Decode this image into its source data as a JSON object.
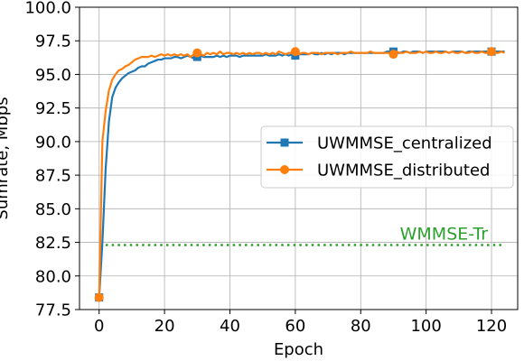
{
  "chart_data": {
    "type": "line",
    "xlabel": "Epoch",
    "ylabel": "Sumrate, Mbps",
    "xlim": [
      -6,
      128
    ],
    "ylim": [
      77.5,
      100.0
    ],
    "xticks": [
      0,
      20,
      40,
      60,
      80,
      100,
      120
    ],
    "yticks": [
      77.5,
      80.0,
      82.5,
      85.0,
      87.5,
      90.0,
      92.5,
      95.0,
      97.5,
      100.0
    ],
    "ytick_labels": [
      "77.5",
      "80.0",
      "82.5",
      "85.0",
      "87.5",
      "90.0",
      "92.5",
      "95.0",
      "97.5",
      "100.0"
    ],
    "xtick_labels": [
      "0",
      "20",
      "40",
      "60",
      "80",
      "100",
      "120"
    ],
    "grid": true,
    "legend_position": "center-right",
    "series": [
      {
        "name": "UWMMSE_centralized",
        "color": "#1f77b4",
        "marker": "square",
        "marker_every": 30,
        "x": [
          0,
          1,
          2,
          3,
          4,
          5,
          6,
          7,
          8,
          9,
          10,
          11,
          12,
          13,
          14,
          15,
          16,
          17,
          18,
          19,
          20,
          21,
          22,
          23,
          24,
          25,
          26,
          27,
          28,
          29,
          30,
          31,
          32,
          33,
          34,
          35,
          36,
          37,
          38,
          39,
          40,
          41,
          42,
          43,
          44,
          45,
          46,
          47,
          48,
          49,
          50,
          51,
          52,
          53,
          54,
          55,
          56,
          57,
          58,
          59,
          60,
          61,
          62,
          63,
          64,
          65,
          66,
          67,
          68,
          69,
          70,
          71,
          72,
          73,
          74,
          75,
          76,
          77,
          78,
          79,
          80,
          81,
          82,
          83,
          84,
          85,
          86,
          87,
          88,
          89,
          90,
          91,
          92,
          93,
          94,
          95,
          96,
          97,
          98,
          99,
          100,
          101,
          102,
          103,
          104,
          105,
          106,
          107,
          108,
          109,
          110,
          111,
          112,
          113,
          114,
          115,
          116,
          117,
          118,
          119,
          120,
          121,
          122,
          123,
          124
        ],
        "values": [
          78.4,
          82.5,
          88.0,
          91.5,
          93.3,
          94.0,
          94.4,
          94.7,
          94.9,
          95.1,
          95.2,
          95.3,
          95.5,
          95.6,
          95.6,
          95.8,
          95.9,
          96.0,
          96.1,
          96.1,
          96.2,
          96.2,
          96.2,
          96.3,
          96.3,
          96.2,
          96.3,
          96.4,
          96.3,
          96.2,
          96.3,
          96.4,
          96.3,
          96.3,
          96.3,
          96.3,
          96.4,
          96.3,
          96.4,
          96.3,
          96.4,
          96.4,
          96.4,
          96.3,
          96.4,
          96.4,
          96.4,
          96.4,
          96.4,
          96.4,
          96.4,
          96.5,
          96.4,
          96.4,
          96.4,
          96.5,
          96.4,
          96.5,
          96.4,
          96.5,
          96.4,
          96.5,
          96.5,
          96.5,
          96.5,
          96.6,
          96.5,
          96.5,
          96.6,
          96.5,
          96.6,
          96.5,
          96.6,
          96.6,
          96.6,
          96.5,
          96.6,
          96.6,
          96.6,
          96.6,
          96.6,
          96.6,
          96.6,
          96.6,
          96.6,
          96.6,
          96.6,
          96.6,
          96.7,
          96.7,
          96.7,
          96.6,
          96.6,
          96.7,
          96.7,
          96.6,
          96.7,
          96.7,
          96.7,
          96.6,
          96.7,
          96.7,
          96.7,
          96.7,
          96.7,
          96.7,
          96.7,
          96.6,
          96.7,
          96.7,
          96.7,
          96.7,
          96.6,
          96.7,
          96.7,
          96.7,
          96.7,
          96.7,
          96.7,
          96.7,
          96.7,
          96.7,
          96.7,
          96.7,
          96.7
        ]
      },
      {
        "name": "UWMMSE_distributed",
        "color": "#ff7f0e",
        "marker": "circle",
        "marker_every": 30,
        "x": [
          0,
          1,
          2,
          3,
          4,
          5,
          6,
          7,
          8,
          9,
          10,
          11,
          12,
          13,
          14,
          15,
          16,
          17,
          18,
          19,
          20,
          21,
          22,
          23,
          24,
          25,
          26,
          27,
          28,
          29,
          30,
          31,
          32,
          33,
          34,
          35,
          36,
          37,
          38,
          39,
          40,
          41,
          42,
          43,
          44,
          45,
          46,
          47,
          48,
          49,
          50,
          51,
          52,
          53,
          54,
          55,
          56,
          57,
          58,
          59,
          60,
          61,
          62,
          63,
          64,
          65,
          66,
          67,
          68,
          69,
          70,
          71,
          72,
          73,
          74,
          75,
          76,
          77,
          78,
          79,
          80,
          81,
          82,
          83,
          84,
          85,
          86,
          87,
          88,
          89,
          90,
          91,
          92,
          93,
          94,
          95,
          96,
          97,
          98,
          99,
          100,
          101,
          102,
          103,
          104,
          105,
          106,
          107,
          108,
          109,
          110,
          111,
          112,
          113,
          114,
          115,
          116,
          117,
          118,
          119,
          120,
          121,
          122,
          123,
          124
        ],
        "values": [
          78.4,
          90.0,
          92.3,
          93.8,
          94.6,
          95.0,
          95.3,
          95.4,
          95.6,
          95.7,
          95.9,
          96.1,
          96.2,
          96.3,
          96.3,
          96.3,
          96.4,
          96.3,
          96.4,
          96.5,
          96.4,
          96.5,
          96.4,
          96.5,
          96.4,
          96.5,
          96.4,
          96.5,
          96.3,
          96.5,
          96.6,
          96.5,
          96.4,
          96.6,
          96.5,
          96.6,
          96.5,
          96.7,
          96.5,
          96.6,
          96.6,
          96.5,
          96.6,
          96.5,
          96.6,
          96.5,
          96.6,
          96.5,
          96.6,
          96.6,
          96.5,
          96.6,
          96.5,
          96.6,
          96.5,
          96.7,
          96.6,
          96.5,
          96.6,
          96.6,
          96.7,
          96.5,
          96.6,
          96.6,
          96.5,
          96.6,
          96.6,
          96.6,
          96.5,
          96.6,
          96.6,
          96.6,
          96.6,
          96.5,
          96.6,
          96.6,
          96.6,
          96.7,
          96.6,
          96.6,
          96.6,
          96.6,
          96.6,
          96.7,
          96.6,
          96.6,
          96.6,
          96.6,
          96.6,
          96.6,
          96.5,
          96.7,
          96.6,
          96.6,
          96.7,
          96.6,
          96.6,
          96.6,
          96.7,
          96.6,
          96.7,
          96.6,
          96.6,
          96.7,
          96.6,
          96.6,
          96.7,
          96.6,
          96.7,
          96.6,
          96.6,
          96.7,
          96.6,
          96.6,
          96.7,
          96.6,
          96.6,
          96.7,
          96.6,
          96.6,
          96.7,
          96.6,
          96.6,
          96.7,
          96.6
        ]
      }
    ],
    "reference_line": {
      "label": "WMMSE-Tr",
      "value": 82.3,
      "x_range": [
        2,
        124
      ],
      "color": "#2ca02c",
      "style": "dotted"
    }
  }
}
